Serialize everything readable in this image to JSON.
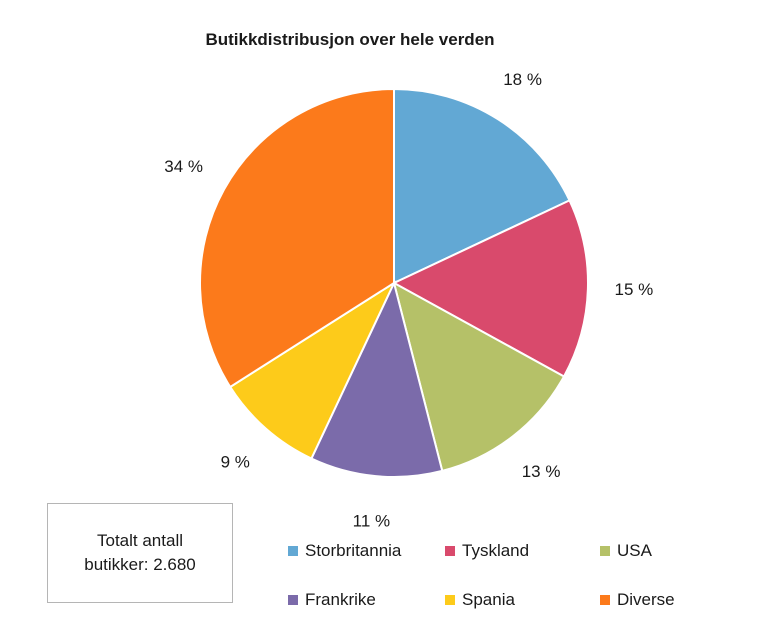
{
  "chart_data": {
    "type": "pie",
    "title": "Butikkdistribusjon over hele verden",
    "unit": "%",
    "slices": [
      {
        "name": "Storbritannia",
        "value": 18,
        "label": "18 %",
        "color": "#62A8D4"
      },
      {
        "name": "Tyskland",
        "value": 15,
        "label": "15 %",
        "color": "#D94A6C"
      },
      {
        "name": "USA",
        "value": 13,
        "label": "13 %",
        "color": "#B5C168"
      },
      {
        "name": "Frankrike",
        "value": 11,
        "label": "11 %",
        "color": "#7B6BAA"
      },
      {
        "name": "Spania",
        "value": 9,
        "label": "9 %",
        "color": "#FDCB1A"
      },
      {
        "name": "Diverse",
        "value": 34,
        "label": "34 %",
        "color": "#FC7A1B"
      }
    ],
    "start_angle": "12 o'clock, clockwise",
    "legend_position": "bottom"
  },
  "info_box": {
    "line1": "Totalt antall",
    "line2": "butikker: 2.680"
  }
}
